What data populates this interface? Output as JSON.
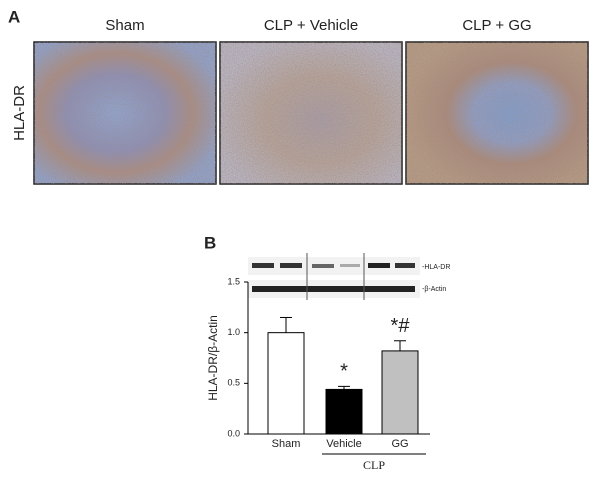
{
  "panel_a": {
    "label": "A",
    "row_label": "HLA-DR",
    "columns": [
      "Sham",
      "CLP + Vehicle",
      "CLP + GG"
    ]
  },
  "chart_data": {
    "type": "bar",
    "label": "B",
    "ylabel": "HLA-DR/β-Actin",
    "blot_labels": [
      "-HLA-DR",
      "-β-Actin"
    ],
    "categories": [
      "Sham",
      "Vehicle",
      "GG"
    ],
    "group_label": "CLP",
    "values": [
      1.0,
      0.44,
      0.82
    ],
    "errors": [
      0.15,
      0.03,
      0.1
    ],
    "colors": [
      "#ffffff",
      "#000000",
      "#c0c0c0"
    ],
    "markers": [
      null,
      "*",
      "*#"
    ],
    "ylim": [
      0,
      1.5
    ],
    "yticks": [
      {
        "value": 0,
        "label": "0.0"
      },
      {
        "value": 0.5,
        "label": "0.5"
      },
      {
        "value": 1,
        "label": "1.0"
      },
      {
        "value": 1.5,
        "label": "1.5"
      }
    ]
  }
}
